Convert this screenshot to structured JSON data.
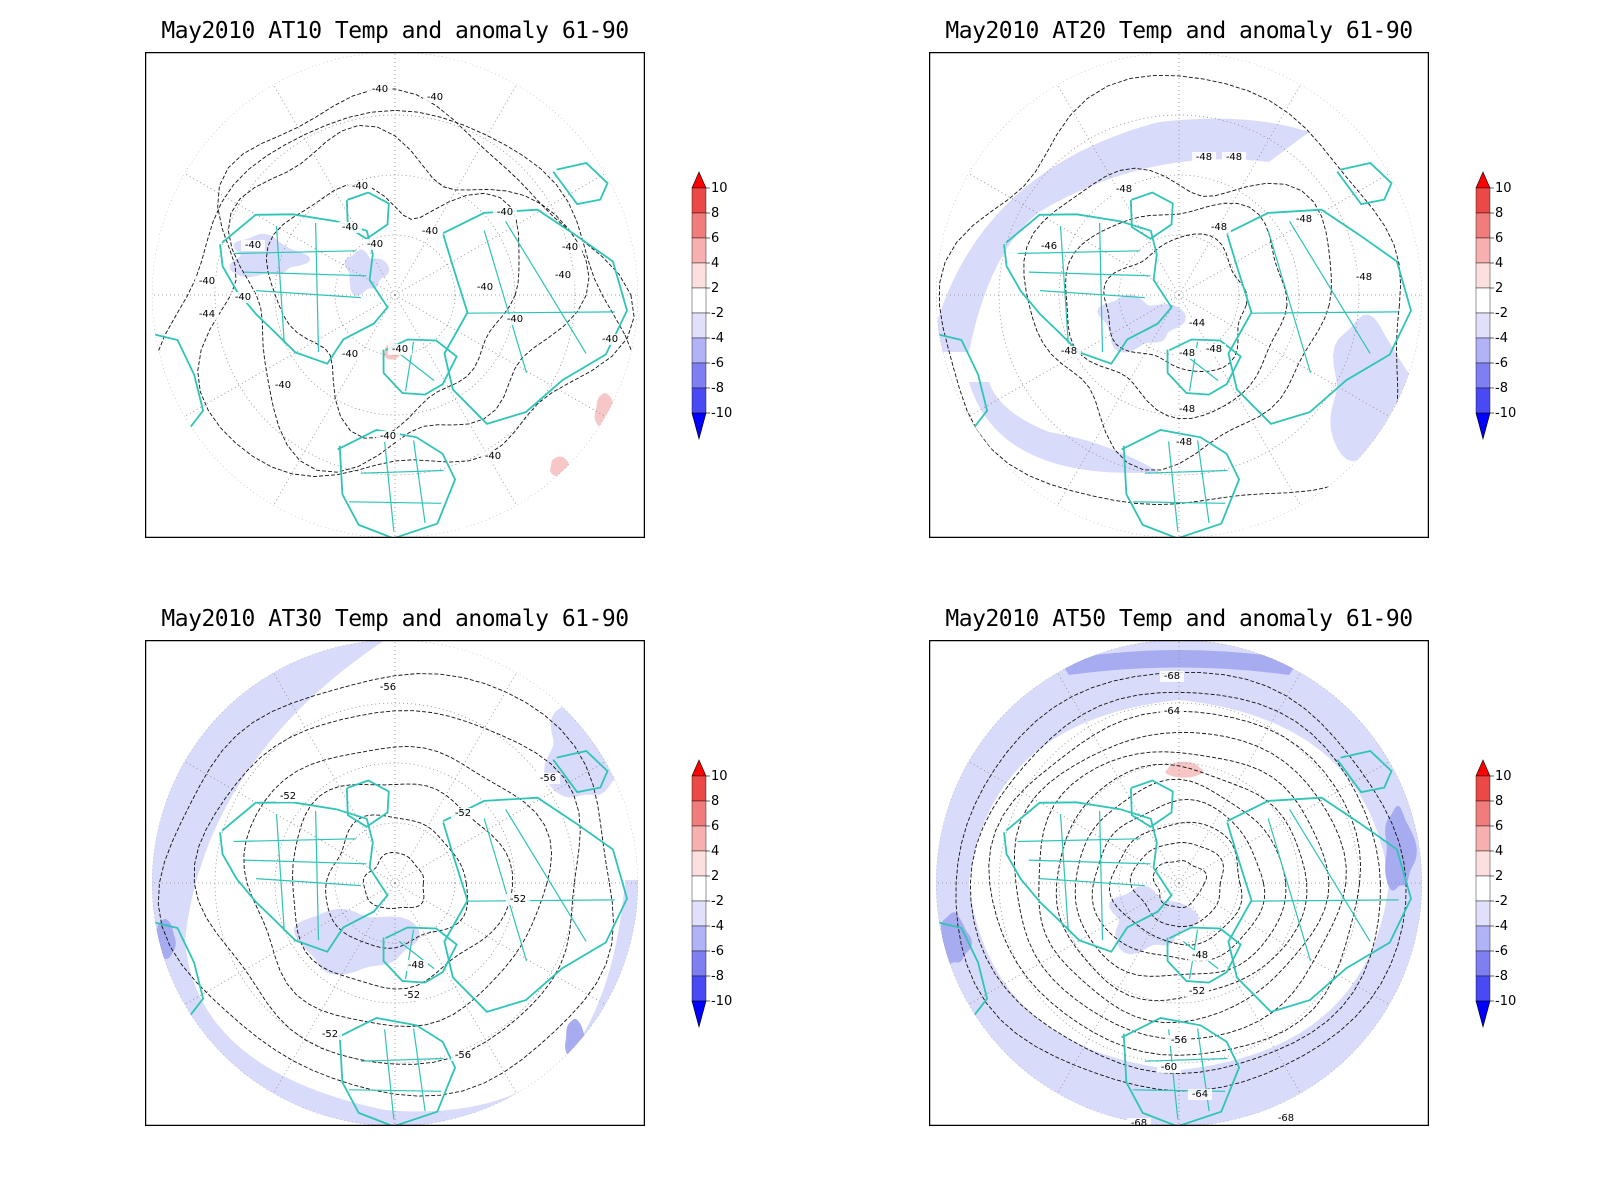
{
  "colors": {
    "coastline": "#2EC4B6",
    "contour": "#111111",
    "grid": "#888888",
    "frame": "#000000",
    "anomaly_neg_light": "#D9DBFA",
    "anomaly_neg_mid": "#A7ABF0",
    "anomaly_pos_light": "#F7C7C7",
    "cbar_scale": [
      "#0000FF",
      "#4A4AF5",
      "#7F7FF2",
      "#B2B2F6",
      "#E0E0FB",
      "#FFFFFF",
      "#FCE0E0",
      "#F7B0B0",
      "#F07C7C",
      "#EB4848",
      "#FF0000"
    ]
  },
  "colorbar": {
    "ticks": [
      "10",
      "8",
      "6",
      "4",
      "2",
      "-2",
      "-4",
      "-6",
      "-8",
      "-10"
    ]
  },
  "panels": [
    {
      "title": "May2010 AT10 Temp and anomaly 61-90",
      "contour_labels": [
        "-40",
        "-40",
        "-40",
        "-40",
        "-40",
        "-40",
        "-40",
        "-40",
        "-40",
        "-40",
        "-44",
        "-40",
        "-40",
        "-40",
        "-40",
        "-40",
        "-40",
        "-40",
        "-40",
        "-40",
        "-40"
      ]
    },
    {
      "title": "May2010 AT20 Temp and anomaly 61-90",
      "contour_labels": [
        "-48",
        "-48",
        "-48",
        "-48",
        "-48",
        "-46",
        "-48",
        "-48",
        "-44",
        "-48",
        "-48",
        "-48",
        "-48"
      ]
    },
    {
      "title": "May2010 AT30 Temp and anomaly 61-90",
      "contour_labels": [
        "-56",
        "-56",
        "-52",
        "-52",
        "-52",
        "-48",
        "-52",
        "-52",
        "-56"
      ]
    },
    {
      "title": "May2010 AT50 Temp and anomaly 61-90",
      "contour_labels": [
        "-68",
        "-64",
        "-48",
        "-52",
        "-56",
        "-60",
        "-64",
        "-68",
        "-68"
      ]
    }
  ]
}
